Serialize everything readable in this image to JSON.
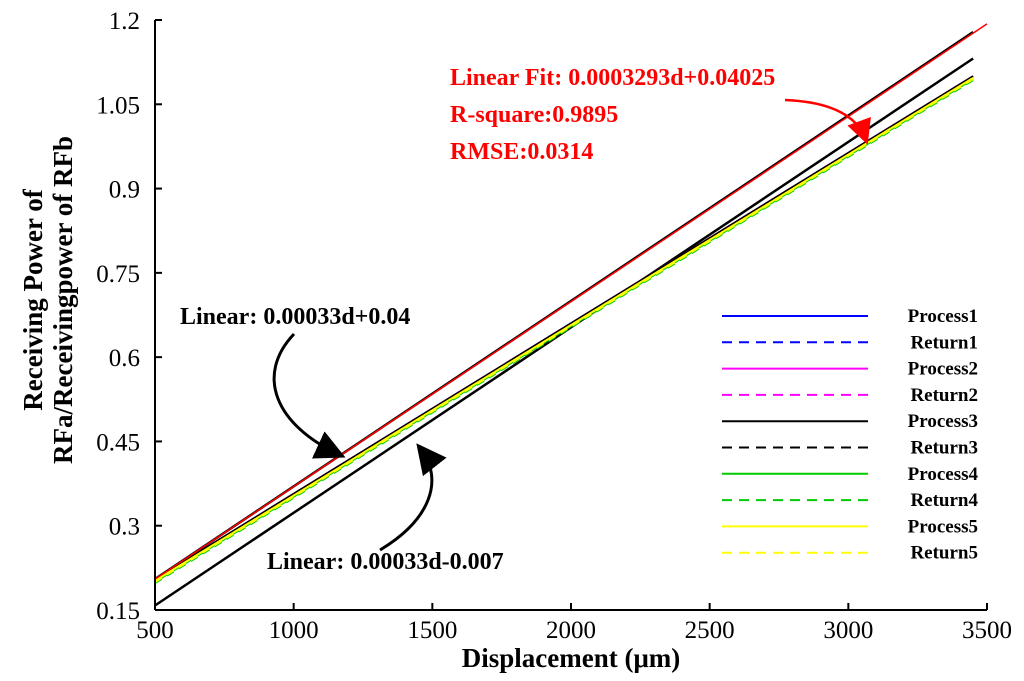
{
  "chart_data": {
    "type": "line",
    "title": "",
    "xlabel": "Displacement  (μm)",
    "ylabel_line1": "Receiving Power of",
    "ylabel_line2": "RFa/Receivingpower of RFb",
    "xlim": [
      500,
      3500
    ],
    "ylim": [
      0.15,
      1.2
    ],
    "xticks": [
      500,
      1000,
      1500,
      2000,
      2500,
      3000,
      3500
    ],
    "xtick_labels": [
      "500",
      "1000",
      "1500",
      "2000",
      "2500",
      "3000",
      "3500"
    ],
    "yticks": [
      0.15,
      0.3,
      0.45,
      0.6,
      0.75,
      0.9,
      1.05,
      1.2
    ],
    "ytick_labels": [
      "0.15",
      "0.3",
      "0.45",
      "0.6",
      "0.75",
      "0.9",
      "1.05",
      "1.2"
    ],
    "grid": false,
    "legend_position": "lower-right",
    "series": [
      {
        "name": "Process1",
        "color": "#0000ff",
        "dash": "solid",
        "x": [
          500,
          3450
        ],
        "y": [
          0.205,
          1.1
        ]
      },
      {
        "name": "Return1",
        "color": "#0000ff",
        "dash": "dashed",
        "x": [
          500,
          3450
        ],
        "y": [
          0.2,
          1.095
        ]
      },
      {
        "name": "Process2",
        "color": "#ff00ff",
        "dash": "solid",
        "x": [
          500,
          3450
        ],
        "y": [
          0.205,
          1.1
        ]
      },
      {
        "name": "Return2",
        "color": "#ff00ff",
        "dash": "dashed",
        "x": [
          500,
          3450
        ],
        "y": [
          0.2,
          1.095
        ]
      },
      {
        "name": "Process3",
        "color": "#000000",
        "dash": "solid",
        "x": [
          500,
          3450
        ],
        "y": [
          0.205,
          1.1
        ]
      },
      {
        "name": "Return3",
        "color": "#000000",
        "dash": "dashed",
        "x": [
          500,
          3450
        ],
        "y": [
          0.2,
          1.095
        ]
      },
      {
        "name": "Process4",
        "color": "#00cc00",
        "dash": "solid",
        "x": [
          500,
          3450
        ],
        "y": [
          0.2,
          1.095
        ]
      },
      {
        "name": "Return4",
        "color": "#00cc00",
        "dash": "dashed",
        "x": [
          500,
          3450
        ],
        "y": [
          0.198,
          1.093
        ]
      },
      {
        "name": "Process5",
        "color": "#ffff00",
        "dash": "solid",
        "x": [
          500,
          3450
        ],
        "y": [
          0.202,
          1.097
        ]
      },
      {
        "name": "Return5",
        "color": "#ffff00",
        "dash": "dashed",
        "x": [
          500,
          3450
        ],
        "y": [
          0.2,
          1.095
        ]
      }
    ],
    "fit_line": {
      "color": "#ff0000",
      "x": [
        500,
        3500
      ],
      "y": [
        0.2049,
        1.193
      ]
    },
    "bounds": [
      {
        "x": [
          500,
          3450
        ],
        "y": [
          0.205,
          1.1785
        ]
      },
      {
        "x": [
          500,
          3450
        ],
        "y": [
          0.158,
          1.1315
        ]
      }
    ],
    "annotations": {
      "fit_line1": "Linear Fit: 0.0003293d+0.04025",
      "fit_line2": "R-square:0.9895",
      "fit_line3": "RMSE:0.0314",
      "fit_color": "#ff0000",
      "upper_bound": "Linear: 0.00033d+0.04",
      "lower_bound": "Linear: 0.00033d-0.007"
    }
  }
}
